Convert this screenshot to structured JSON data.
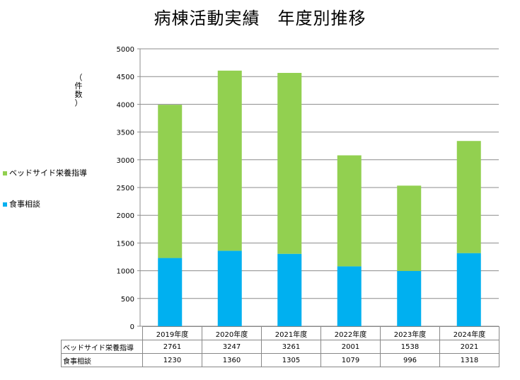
{
  "chart_data": {
    "type": "bar",
    "stacked": true,
    "title": "病棟活動実績　年度別推移",
    "ylabel": "（件数）",
    "ylim": [
      0,
      5000
    ],
    "yticks": [
      0,
      500,
      1000,
      1500,
      2000,
      2500,
      3000,
      3500,
      4000,
      4500,
      5000
    ],
    "grid": true,
    "legend_position": "left",
    "categories": [
      "2019年度",
      "2020年度",
      "2021年度",
      "2022年度",
      "2023年度",
      "2024年度"
    ],
    "series": [
      {
        "name": "食事相談",
        "values": [
          1230,
          1360,
          1305,
          1079,
          996,
          1318
        ],
        "color": "#00b0f0"
      },
      {
        "name": "ベッドサイド栄養指導",
        "values": [
          2761,
          3247,
          3261,
          2001,
          1538,
          2021
        ],
        "color": "#92d050"
      }
    ],
    "table_rows": [
      {
        "label": "ベッドサイド栄養指導",
        "values": [
          "2761",
          "3247",
          "3261",
          "2001",
          "1538",
          "2021"
        ]
      },
      {
        "label": "食事相談",
        "values": [
          "1230",
          "1360",
          "1305",
          "1079",
          "996",
          "1318"
        ]
      }
    ]
  }
}
